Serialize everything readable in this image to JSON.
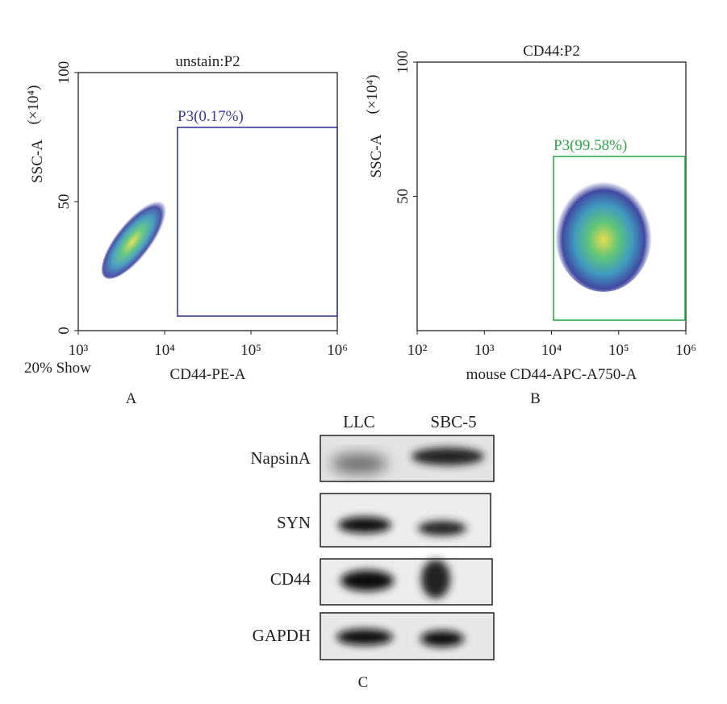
{
  "panels": [
    {
      "title": "unstain:P2",
      "y_label": "SSC-A",
      "y_unit": "(×10⁴)",
      "x_label": "CD44-PE-A",
      "x_ticks": [
        "10³",
        "10⁴",
        "10⁵",
        "10⁶"
      ],
      "y_ticks": [
        "0",
        "50",
        "100"
      ],
      "gate": "P3(0.17%)",
      "letter": "A",
      "note": "20% Show"
    },
    {
      "title": "CD44:P2",
      "y_label": "SSC-A",
      "y_unit": "(×10⁴)",
      "x_label": "mouse CD44-APC-A750-A",
      "x_ticks": [
        "10²",
        "10³",
        "10⁴",
        "10⁵",
        "10⁶"
      ],
      "y_ticks": [
        "50",
        "100"
      ],
      "gate": "P3(99.58%)",
      "letter": "B"
    }
  ],
  "blot": {
    "lanes": [
      "LLC",
      "SBC-5"
    ],
    "rows": [
      "NapsinA",
      "SYN",
      "CD44",
      "GAPDH"
    ],
    "letter": "C"
  }
}
